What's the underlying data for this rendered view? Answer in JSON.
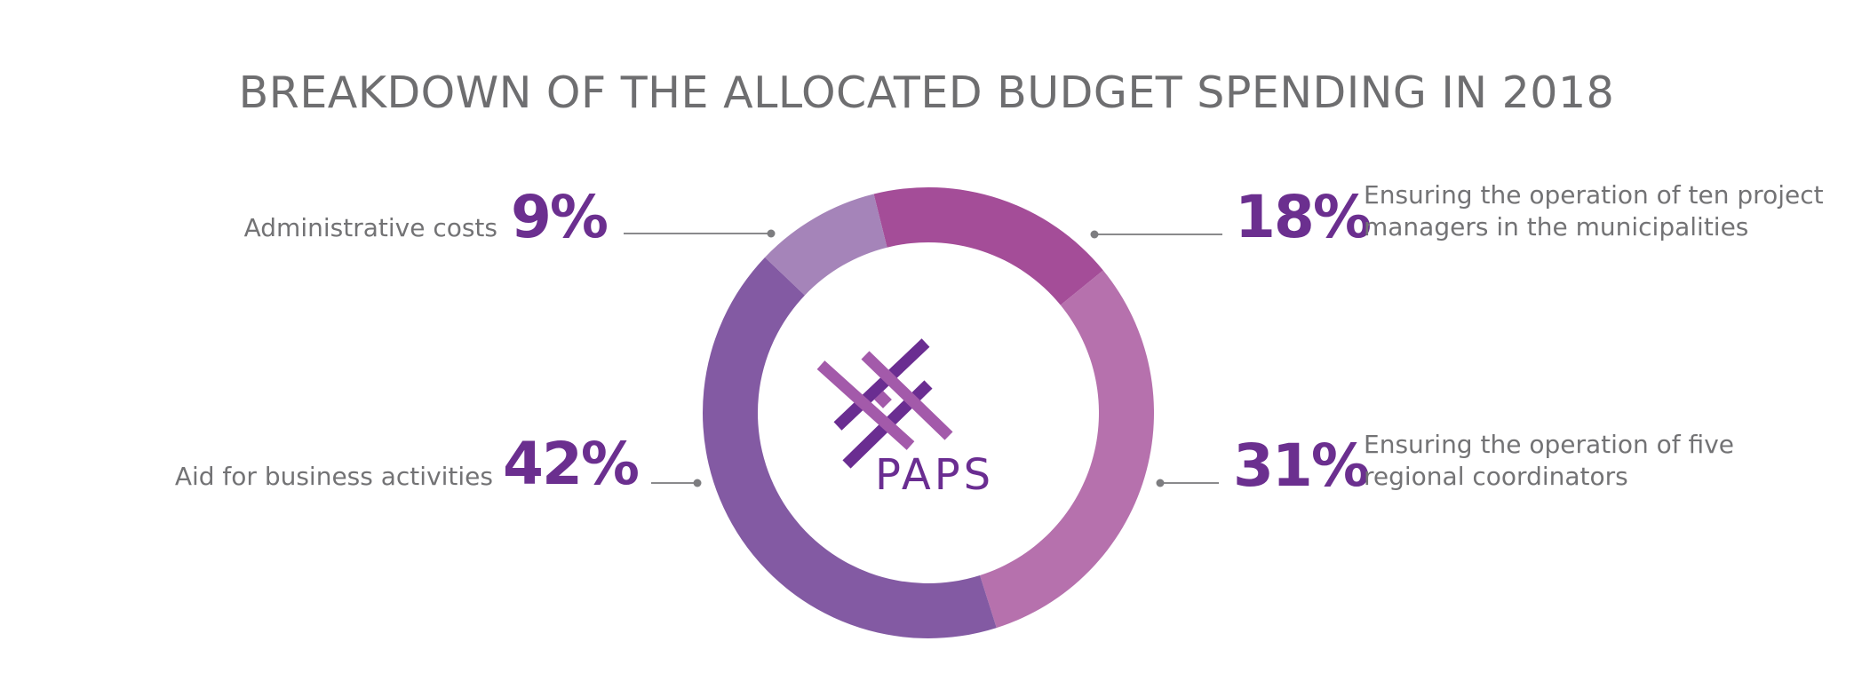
{
  "colors": {
    "title": "#6e6e70",
    "percent": "#6b2f8f",
    "label": "#737375",
    "logo_dark": "#6a2d91",
    "logo_light": "#a35aaa"
  },
  "chart_data": {
    "type": "pie",
    "variant": "donut",
    "title": "BREAKDOWN OF THE ALLOCATED BUDGET SPENDING IN 2018",
    "center_logo_text": "PAPS",
    "slices": [
      {
        "label_lines": [
          "Ensuring the operation of ten project",
          "managers in the municipalities"
        ],
        "value": 18,
        "display": "18%",
        "color": "#a44d98",
        "label_side": "right"
      },
      {
        "label_lines": [
          "Ensuring the operation of five",
          "regional coordinators"
        ],
        "value": 31,
        "display": "31%",
        "color": "#b671ad",
        "label_side": "right"
      },
      {
        "label_lines": [
          "Aid for business activities"
        ],
        "value": 42,
        "display": "42%",
        "color": "#835aa3",
        "label_side": "left"
      },
      {
        "label_lines": [
          "Administrative costs"
        ],
        "value": 9,
        "display": "9%",
        "color": "#a584b9",
        "label_side": "left"
      }
    ]
  }
}
